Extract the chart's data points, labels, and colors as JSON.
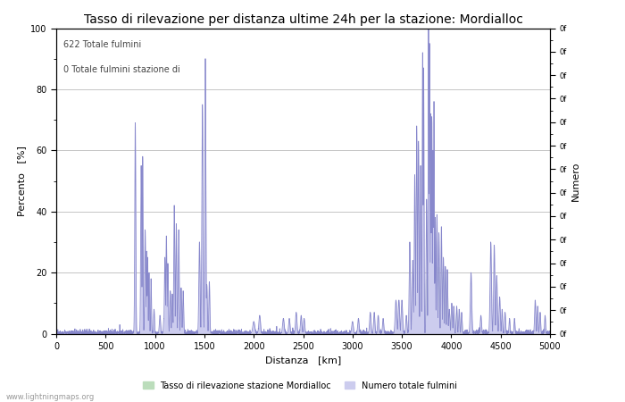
{
  "title": "Tasso di rilevazione per distanza ultime 24h per la stazione: Mordialloc",
  "xlabel": "Distanza   [km]",
  "ylabel_left": "Percento   [%]",
  "ylabel_right": "Numero",
  "annotation_line1": "622 Totale fulmini",
  "annotation_line2": "0 Totale fulmini stazione di",
  "xlim": [
    0,
    5000
  ],
  "ylim_left": [
    0,
    100
  ],
  "xticks": [
    0,
    500,
    1000,
    1500,
    2000,
    2500,
    3000,
    3500,
    4000,
    4500,
    5000
  ],
  "yticks_left": [
    0,
    20,
    40,
    60,
    80,
    100
  ],
  "legend_label_green": "Tasso di rilevazione stazione Mordialloc",
  "legend_label_blue": "Numero totale fulmini",
  "watermark": "www.lightningmaps.org",
  "bg_color": "#ffffff",
  "grid_color": "#bbbbbb",
  "line_color": "#8888cc",
  "fill_blue_color": "#ccccee",
  "fill_green_color": "#bbddbb",
  "title_fontsize": 10,
  "axis_fontsize": 8,
  "tick_fontsize": 7,
  "annotation_fontsize": 7
}
